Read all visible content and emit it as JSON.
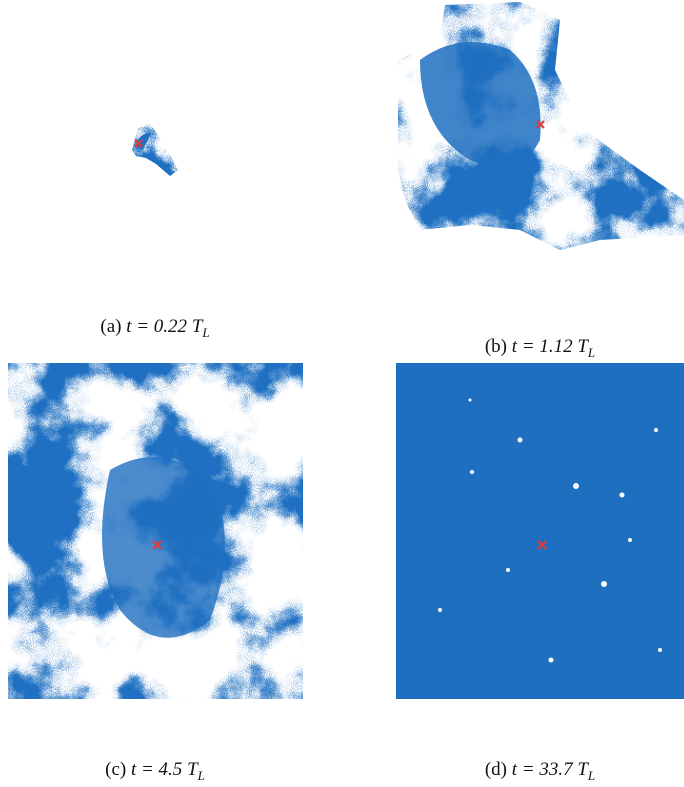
{
  "panels": [
    {
      "label": "(a)",
      "expr": "t = 0.22",
      "symbol": "T",
      "subscript": "L"
    },
    {
      "label": "(b)",
      "expr": "t = 1.12",
      "symbol": "T",
      "subscript": "L"
    },
    {
      "label": "(c)",
      "expr": "t = 4.5",
      "symbol": "T",
      "subscript": "L"
    },
    {
      "label": "(d)",
      "expr": "t = 33.7",
      "symbol": "T",
      "subscript": "L"
    }
  ]
}
